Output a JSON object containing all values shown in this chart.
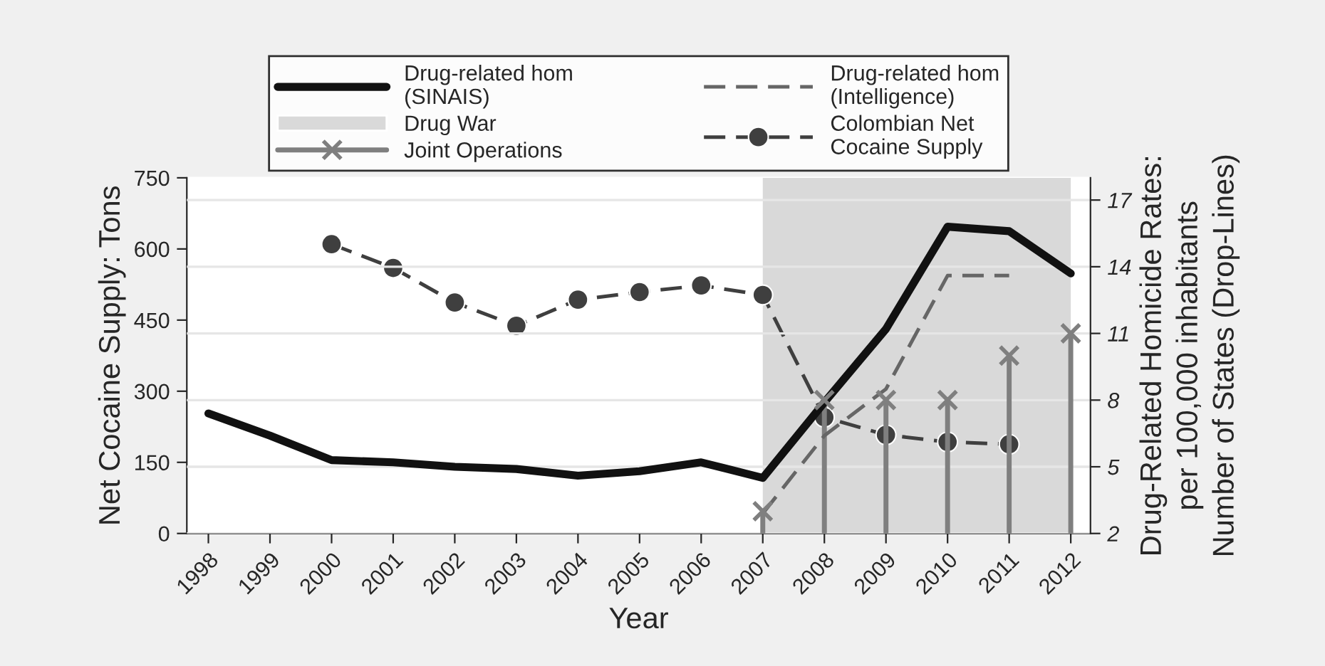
{
  "chart_data": {
    "type": "line",
    "xlabel": "Year",
    "ylabel": "Net Cocaine Supply: Tons",
    "y2label": "Drug-Related Homicide Rates:\nper 100,000 inhabitants\nNumber of States (Drop-Lines)",
    "xlim": [
      1997.65,
      2012.32
    ],
    "xticks": [
      1998,
      1999,
      2000,
      2001,
      2002,
      2003,
      2004,
      2005,
      2006,
      2007,
      2008,
      2009,
      2010,
      2011,
      2012
    ],
    "ylim": [
      0,
      750
    ],
    "yticks": [
      0,
      150,
      300,
      450,
      600,
      750
    ],
    "y2lim": [
      2,
      18
    ],
    "y2ticks": [
      2,
      5,
      8,
      11,
      14,
      17
    ],
    "grid": "y",
    "legend": "top",
    "series": [
      {
        "name": "Drug-related hom\n(SINAIS)",
        "axis": "y2",
        "color": "#111111",
        "line_style": "solid",
        "marker": "none",
        "x": [
          1998,
          1999,
          2000,
          2001,
          2002,
          2003,
          2004,
          2005,
          2006,
          2007,
          2008,
          2009,
          2010,
          2011,
          2012
        ],
        "values": [
          7.4,
          6.4,
          5.3,
          5.2,
          5.0,
          4.9,
          4.6,
          4.8,
          5.2,
          4.5,
          7.9,
          11.2,
          15.8,
          15.6,
          13.7
        ]
      },
      {
        "name": "Joint Operations",
        "type": "lollipop",
        "axis": "y2",
        "color": "#7f7f7f",
        "marker": "cross",
        "x": [
          2007,
          2008,
          2009,
          2010,
          2011,
          2012
        ],
        "values": [
          3,
          8,
          8,
          8,
          10,
          11
        ]
      },
      {
        "name": "Drug-related hom\n(Intelligence)",
        "axis": "y2",
        "color": "#666666",
        "line_style": "dashed",
        "marker": "none",
        "x": [
          2007,
          2008,
          2009,
          2010,
          2011
        ],
        "values": [
          2.9,
          6.4,
          8.5,
          13.6,
          13.6
        ]
      },
      {
        "name": "Colombian Net\nCocaine Supply",
        "axis": "y",
        "color": "#3f3f3f",
        "line_style": "dashed",
        "marker": "circle",
        "x": [
          2000,
          2001,
          2002,
          2003,
          2004,
          2005,
          2006,
          2007,
          2008,
          2009,
          2010,
          2011
        ],
        "values": [
          610,
          560,
          487,
          438,
          493,
          509,
          523,
          503,
          245,
          208,
          193,
          188
        ]
      }
    ],
    "bands": [
      {
        "axis": "x",
        "from": 2007,
        "to": 2012,
        "label": "Drug War",
        "color": "#d9d9d9"
      }
    ]
  }
}
